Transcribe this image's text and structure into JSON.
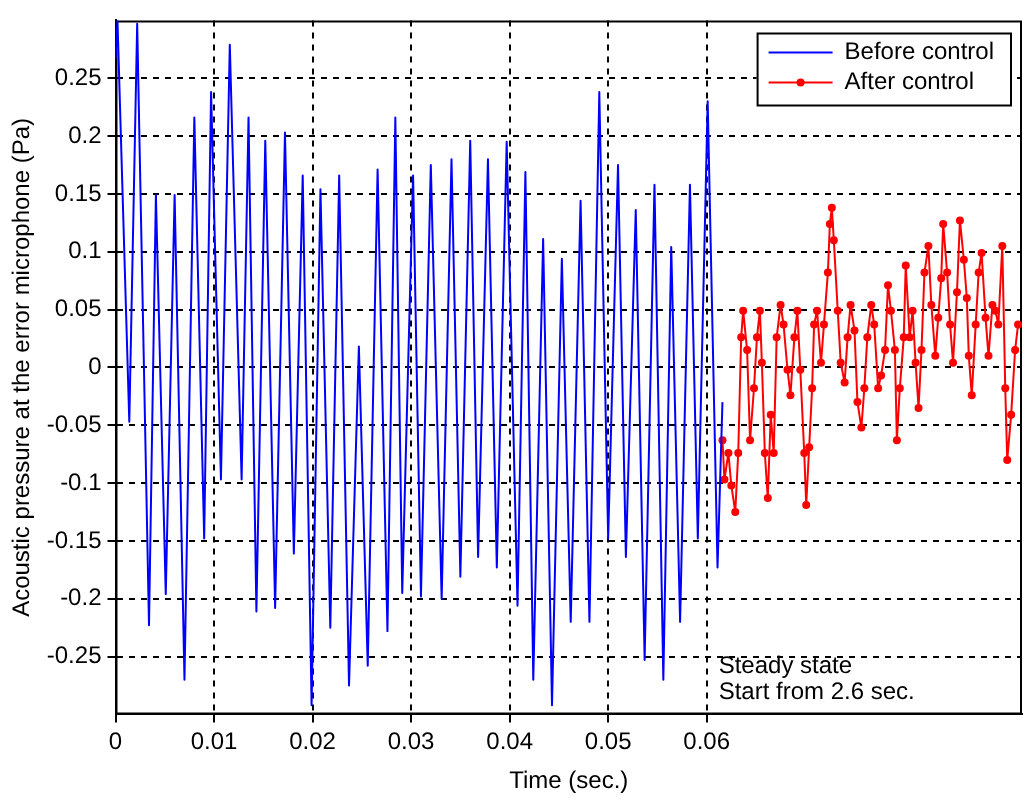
{
  "chart_data": {
    "type": "line",
    "xlabel": "Time (sec.)",
    "ylabel": "Acoustic pressure at the error microphone (Pa)",
    "xlim": [
      0,
      0.092
    ],
    "ylim": [
      -0.3,
      0.3
    ],
    "xticks": [
      0,
      0.01,
      0.02,
      0.03,
      0.04,
      0.05,
      0.06
    ],
    "yticks": [
      -0.25,
      -0.2,
      -0.15,
      -0.1,
      -0.05,
      0,
      0.05,
      0.1,
      0.15,
      0.2,
      0.25
    ],
    "grid": true,
    "legend": "top right",
    "line_style": "solid",
    "annotations": [
      "Steady state",
      "Start from 2.6 sec."
    ],
    "series": [
      {
        "name": "Before control",
        "color": "#0000ff",
        "marker": "none",
        "x": [
          0,
          0.0002,
          0.0014,
          0.0022,
          0.0034,
          0.0041,
          0.0051,
          0.006,
          0.007,
          0.008,
          0.009,
          0.0097,
          0.0107,
          0.0116,
          0.0128,
          0.0135,
          0.0143,
          0.0152,
          0.0162,
          0.0172,
          0.0181,
          0.019,
          0.0199,
          0.0208,
          0.0218,
          0.0227,
          0.0237,
          0.0247,
          0.0256,
          0.0266,
          0.0276,
          0.0284,
          0.0291,
          0.0302,
          0.031,
          0.032,
          0.0331,
          0.0341,
          0.035,
          0.036,
          0.0368,
          0.0378,
          0.0387,
          0.0397,
          0.0408,
          0.0416,
          0.0424,
          0.0434,
          0.0443,
          0.0453,
          0.0462,
          0.0472,
          0.0481,
          0.0491,
          0.05,
          0.051,
          0.0518,
          0.0528,
          0.0537,
          0.0547,
          0.0556,
          0.0564,
          0.0573,
          0.0583,
          0.0591,
          0.0601,
          0.0611,
          0.0616
        ],
        "values": [
          0.267,
          0.3,
          -0.047,
          0.297,
          -0.223,
          0.149,
          -0.196,
          0.149,
          -0.27,
          0.216,
          -0.148,
          0.238,
          -0.097,
          0.279,
          -0.097,
          0.216,
          -0.211,
          0.196,
          -0.208,
          0.203,
          -0.161,
          0.166,
          -0.292,
          0.154,
          -0.225,
          0.166,
          -0.275,
          0.018,
          -0.258,
          0.171,
          -0.228,
          0.216,
          -0.195,
          0.166,
          -0.198,
          0.175,
          -0.2,
          0.18,
          -0.181,
          0.196,
          -0.164,
          0.18,
          -0.173,
          0.195,
          -0.206,
          0.169,
          -0.27,
          0.111,
          -0.292,
          0.094,
          -0.22,
          0.144,
          -0.22,
          0.238,
          -0.148,
          0.175,
          -0.164,
          0.136,
          -0.253,
          0.158,
          -0.27,
          0.104,
          -0.22,
          0.158,
          -0.148,
          0.23,
          -0.173,
          -0.03
        ]
      },
      {
        "name": "After control",
        "color": "#ff0000",
        "marker": "circle",
        "x": [
          0.0616,
          0.0618,
          0.0622,
          0.0625,
          0.0629,
          0.0632,
          0.0635,
          0.0637,
          0.0641,
          0.0644,
          0.0648,
          0.0651,
          0.0654,
          0.0656,
          0.0659,
          0.0662,
          0.0665,
          0.0668,
          0.0671,
          0.0675,
          0.0678,
          0.0682,
          0.0685,
          0.0689,
          0.0692,
          0.0695,
          0.0699,
          0.0701,
          0.0704,
          0.0707,
          0.0709,
          0.0712,
          0.0716,
          0.0719,
          0.0723,
          0.0725,
          0.0727,
          0.0729,
          0.0733,
          0.0736,
          0.074,
          0.0743,
          0.0746,
          0.075,
          0.0753,
          0.0757,
          0.076,
          0.0763,
          0.0767,
          0.077,
          0.0774,
          0.0777,
          0.0781,
          0.0784,
          0.0787,
          0.0791,
          0.0793,
          0.0796,
          0.08,
          0.0802,
          0.0806,
          0.0809,
          0.0812,
          0.0815,
          0.0818,
          0.0821,
          0.0825,
          0.0828,
          0.0832,
          0.0835,
          0.0838,
          0.084,
          0.0844,
          0.0847,
          0.085,
          0.0854,
          0.0857,
          0.0861,
          0.0864,
          0.0866,
          0.0869,
          0.0873,
          0.0876,
          0.0879,
          0.0883,
          0.0886,
          0.089,
          0.0893,
          0.0896,
          0.09,
          0.0903,
          0.0905,
          0.0909,
          0.0913,
          0.0916
        ],
        "values": [
          -0.063,
          -0.097,
          -0.074,
          -0.102,
          -0.125,
          -0.074,
          0.026,
          0.049,
          0.015,
          -0.063,
          -0.018,
          0.026,
          0.049,
          0.004,
          -0.074,
          -0.113,
          -0.041,
          -0.074,
          0.026,
          0.054,
          0.037,
          -0.002,
          -0.024,
          0.026,
          0.049,
          -0.002,
          -0.074,
          -0.119,
          -0.069,
          -0.018,
          0.037,
          0.049,
          0.004,
          0.037,
          0.082,
          0.124,
          0.138,
          0.11,
          0.049,
          0.004,
          -0.013,
          0.026,
          0.054,
          0.032,
          -0.03,
          -0.052,
          -0.018,
          0.026,
          0.054,
          0.037,
          -0.018,
          -0.007,
          0.015,
          0.071,
          0.049,
          0.015,
          -0.063,
          -0.018,
          0.026,
          0.088,
          0.026,
          0.049,
          0.004,
          -0.035,
          0.015,
          0.082,
          0.105,
          0.054,
          0.01,
          0.043,
          0.077,
          0.124,
          0.082,
          0.037,
          0.004,
          0.065,
          0.127,
          0.093,
          0.06,
          0.01,
          -0.024,
          0.037,
          0.082,
          0.099,
          0.043,
          0.01,
          0.054,
          0.049,
          0.037,
          0.105,
          -0.018,
          -0.08,
          -0.041,
          0.015,
          0.037
        ]
      }
    ]
  }
}
